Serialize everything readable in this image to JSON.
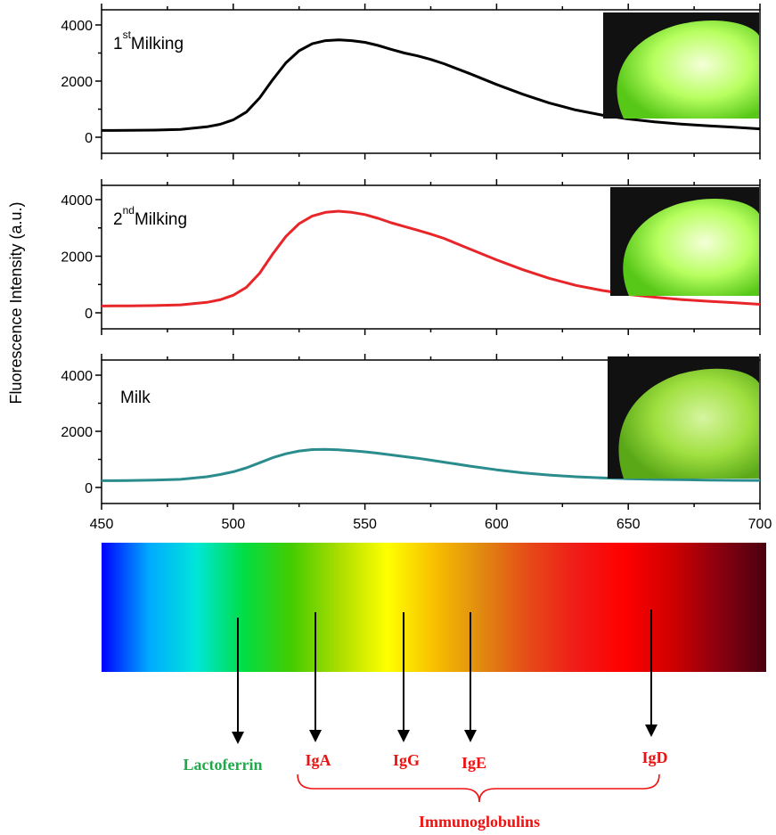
{
  "chart_data": {
    "type": "line",
    "ylabel": "Fluorescence Intensity (a.u.)",
    "xlabel": "",
    "xlim": [
      450,
      700
    ],
    "ylim": [
      0,
      4500
    ],
    "x_ticks": [
      "450",
      "500",
      "550",
      "600",
      "650",
      "700"
    ],
    "y_ticks": [
      "0",
      "2000",
      "4000"
    ],
    "grid": false,
    "panels": [
      {
        "label_main": "1",
        "label_sup": "st",
        "label_rest": "Milking",
        "color": "#000000",
        "x": [
          450,
          460,
          470,
          480,
          490,
          495,
          500,
          505,
          510,
          515,
          520,
          525,
          530,
          535,
          540,
          545,
          550,
          555,
          560,
          565,
          570,
          575,
          580,
          590,
          600,
          610,
          620,
          630,
          640,
          650,
          660,
          670,
          680,
          690,
          700
        ],
        "y": [
          240,
          245,
          255,
          280,
          370,
          460,
          620,
          900,
          1400,
          2050,
          2650,
          3080,
          3330,
          3440,
          3470,
          3440,
          3380,
          3270,
          3130,
          3000,
          2900,
          2770,
          2620,
          2260,
          1880,
          1530,
          1220,
          970,
          790,
          650,
          550,
          470,
          410,
          360,
          300
        ]
      },
      {
        "label_main": "2",
        "label_sup": "nd",
        "label_rest": "Milking",
        "color": "#e8262a",
        "x": [
          450,
          460,
          470,
          480,
          490,
          495,
          500,
          505,
          510,
          515,
          520,
          525,
          530,
          535,
          540,
          545,
          550,
          555,
          560,
          565,
          570,
          575,
          580,
          590,
          600,
          610,
          620,
          630,
          640,
          650,
          660,
          670,
          680,
          690,
          700
        ],
        "y": [
          240,
          245,
          255,
          280,
          370,
          460,
          620,
          900,
          1400,
          2080,
          2700,
          3150,
          3420,
          3550,
          3590,
          3550,
          3470,
          3340,
          3180,
          3050,
          2920,
          2780,
          2630,
          2250,
          1870,
          1520,
          1220,
          970,
          790,
          650,
          550,
          470,
          410,
          360,
          300
        ]
      },
      {
        "label_main": "Milk",
        "label_sup": "",
        "label_rest": "",
        "color": "#2a8c8c",
        "x": [
          450,
          460,
          470,
          480,
          490,
          495,
          500,
          505,
          510,
          515,
          520,
          525,
          530,
          535,
          540,
          545,
          550,
          555,
          560,
          565,
          570,
          575,
          580,
          590,
          600,
          610,
          620,
          630,
          640,
          650,
          660,
          670,
          680,
          690,
          700
        ],
        "y": [
          240,
          245,
          260,
          290,
          380,
          460,
          560,
          700,
          880,
          1060,
          1200,
          1300,
          1350,
          1360,
          1340,
          1310,
          1270,
          1220,
          1160,
          1100,
          1040,
          970,
          900,
          760,
          630,
          520,
          440,
          380,
          340,
          310,
          290,
          275,
          265,
          255,
          250
        ]
      }
    ]
  },
  "spectrum_bar": {
    "colors": [
      "#0000ff",
      "#00aaff",
      "#00e6d8",
      "#00dd44",
      "#44cc00",
      "#aadd00",
      "#ffff00",
      "#f8c000",
      "#e08a10",
      "#e64a18",
      "#f01c18",
      "#ff0000",
      "#d00000",
      "#8a0010",
      "#4a0010"
    ]
  },
  "annotations": {
    "lactoferrin": {
      "label": "Lactoferrin",
      "color": "#1faa4a"
    },
    "iga": {
      "label": "IgA",
      "color": "#ee1111"
    },
    "igg": {
      "label": "IgG",
      "color": "#ee1111"
    },
    "ige": {
      "label": "IgE",
      "color": "#ee1111"
    },
    "igd": {
      "label": "IgD",
      "color": "#ee1111"
    },
    "immunoglobulins": {
      "label": "Immunoglobulins",
      "color": "#ee1111"
    }
  },
  "insets": {
    "bg": "#111111",
    "glow_colors": [
      "#f4ffd8",
      "#b8ff60",
      "#58c818"
    ],
    "milk_glow_colors": [
      "#d6f5a0",
      "#a0e040",
      "#5aa818"
    ]
  }
}
